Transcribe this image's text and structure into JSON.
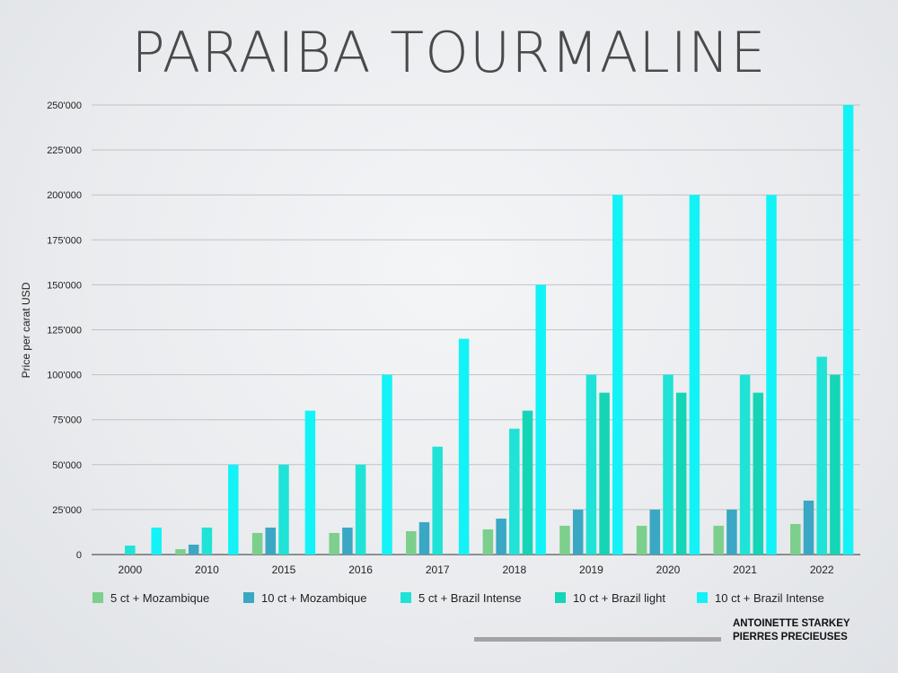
{
  "title": "PARAIBA TOURMALINE",
  "brand": {
    "line1": "ANTOINETTE STARKEY",
    "line2": "PIERRES PRECIEUSES"
  },
  "chart_data": {
    "type": "bar",
    "title": "PARAIBA TOURMALINE",
    "xlabel": "",
    "ylabel": "Price per carat USD",
    "ylim": [
      0,
      250000
    ],
    "yticks": [
      0,
      25000,
      50000,
      75000,
      100000,
      125000,
      150000,
      175000,
      200000,
      225000,
      250000
    ],
    "ytick_labels": [
      "0",
      "25'000",
      "50'000",
      "75'000",
      "100'000",
      "125'000",
      "150'000",
      "175'000",
      "200'000",
      "225'000",
      "250'000"
    ],
    "grid": true,
    "legend_position": "bottom",
    "categories": [
      "2000",
      "2010",
      "2015",
      "2016",
      "2017",
      "2018",
      "2019",
      "2020",
      "2021",
      "2022"
    ],
    "series": [
      {
        "name": "5 ct +  Mozambique",
        "color": "#7ccf8c",
        "values": [
          0,
          3000,
          12000,
          12000,
          13000,
          14000,
          16000,
          16000,
          16000,
          17000
        ]
      },
      {
        "name": "10 ct +  Mozambique",
        "color": "#3aa7c4",
        "values": [
          0,
          5500,
          15000,
          15000,
          18000,
          20000,
          25000,
          25000,
          25000,
          30000
        ]
      },
      {
        "name": "5 ct +  Brazil Intense",
        "color": "#1fe3d7",
        "values": [
          5000,
          15000,
          50000,
          50000,
          60000,
          70000,
          100000,
          100000,
          100000,
          110000
        ]
      },
      {
        "name": "10 ct +  Brazil light",
        "color": "#14d5b6",
        "values": [
          0,
          0,
          0,
          0,
          0,
          80000,
          90000,
          90000,
          90000,
          100000
        ]
      },
      {
        "name": "10 ct +  Brazil Intense",
        "color": "#13f3f7",
        "values": [
          15000,
          50000,
          80000,
          100000,
          120000,
          150000,
          200000,
          200000,
          200000,
          250000
        ]
      }
    ]
  }
}
